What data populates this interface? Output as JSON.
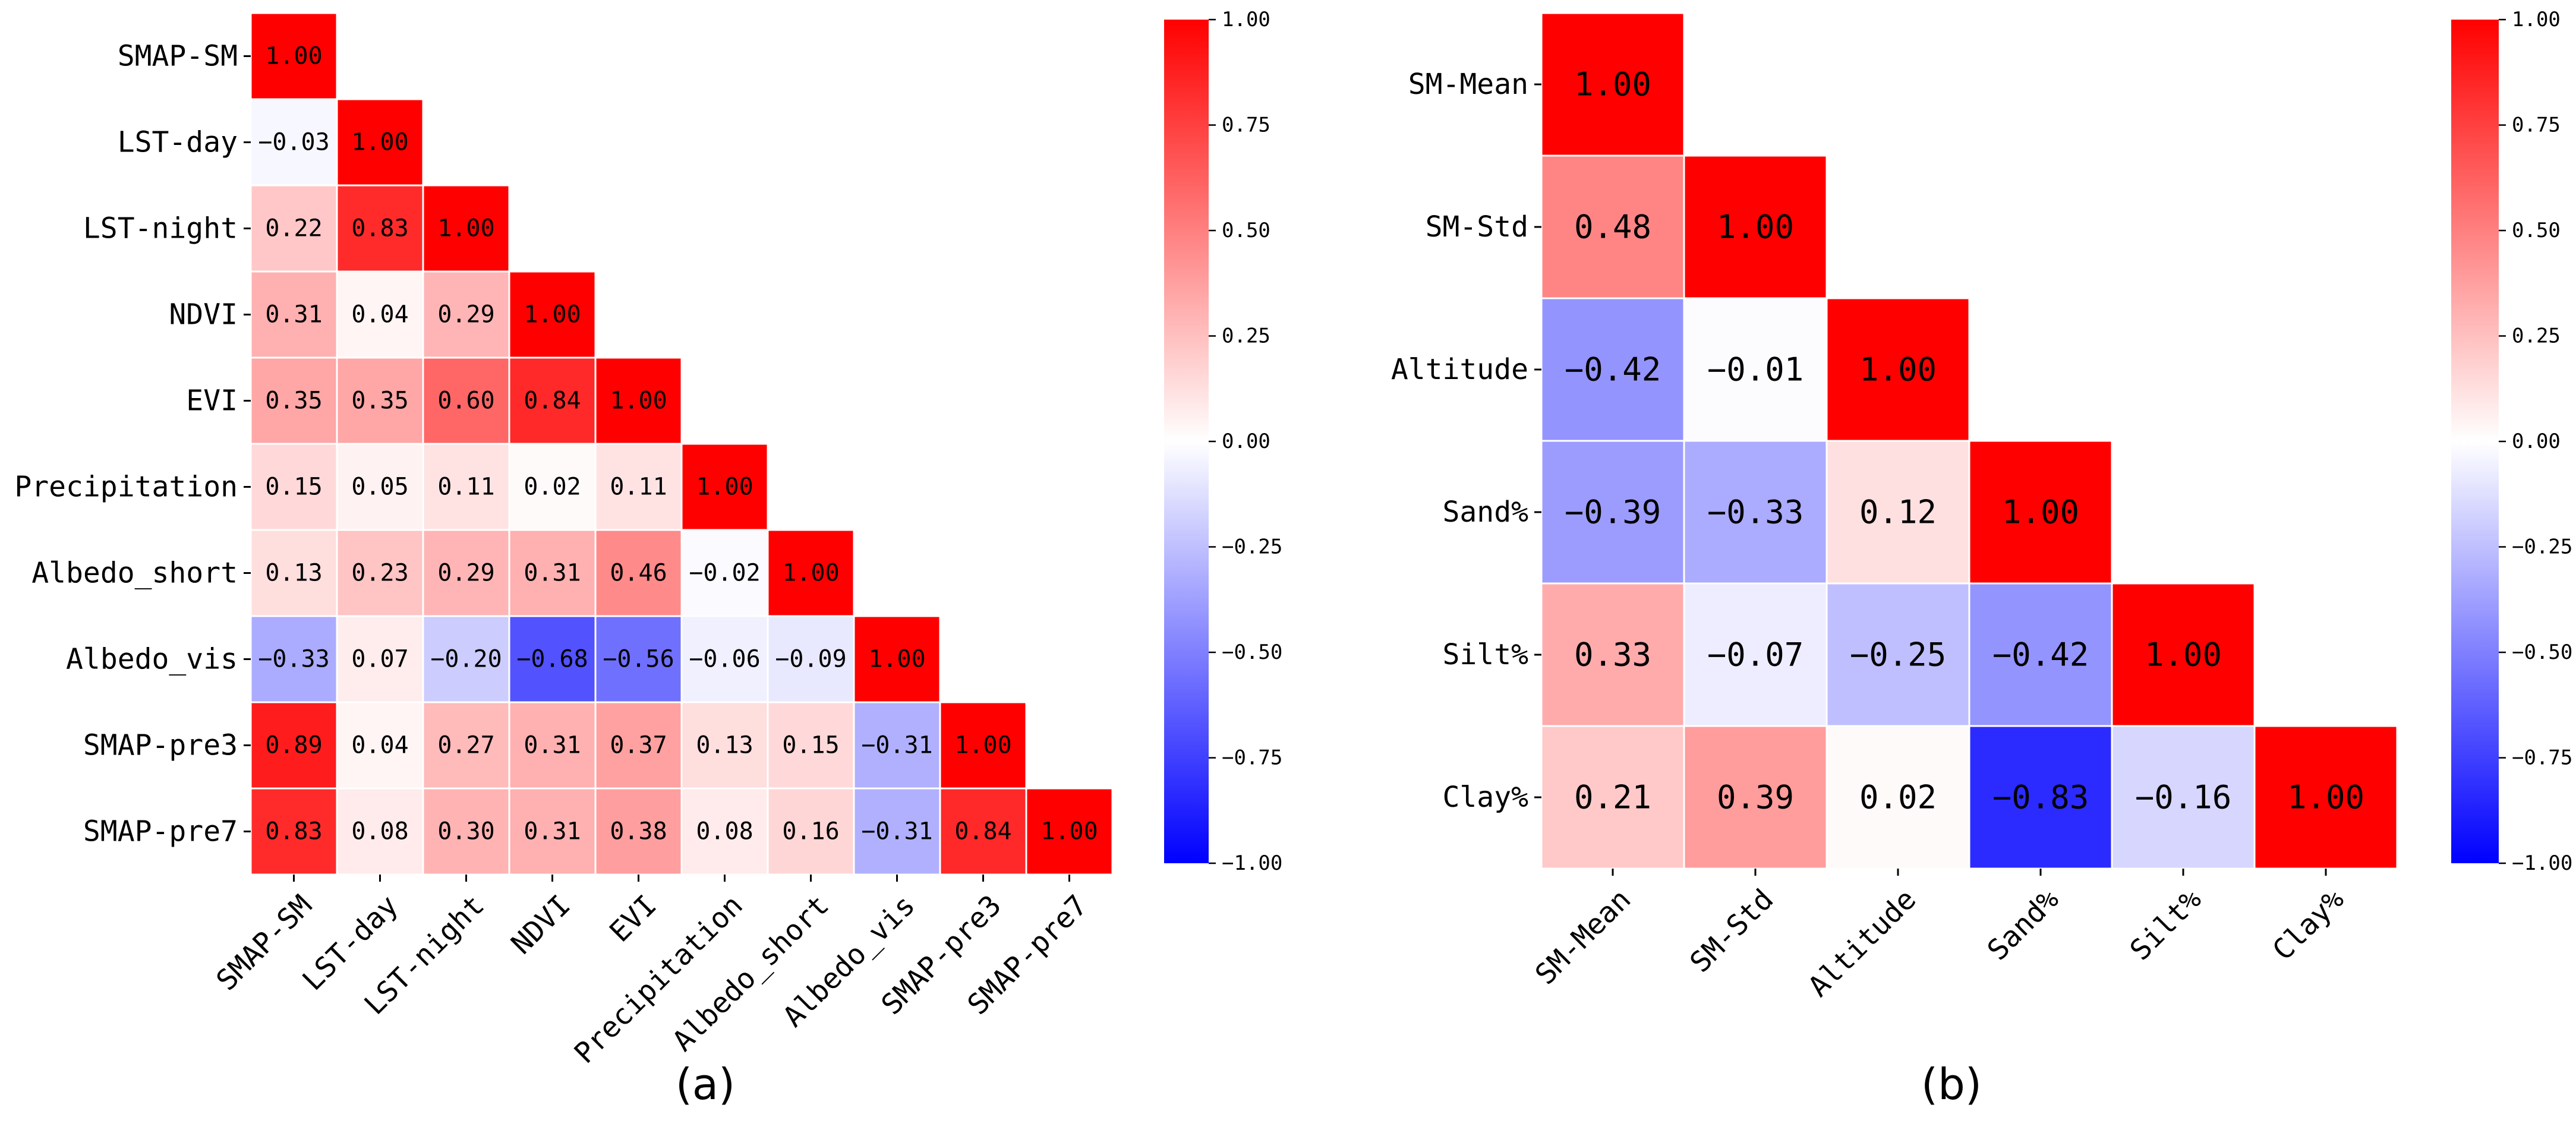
{
  "colors": {
    "positive": "#ff0000",
    "neutral": "#ffffff",
    "negative": "#0000ff",
    "cell_border": "#ffffff"
  },
  "chart_data": [
    {
      "type": "heatmap",
      "panel_label": "(a)",
      "variables": [
        "SMAP-SM",
        "LST-day",
        "LST-night",
        "NDVI",
        "EVI",
        "Precipitation",
        "Albedo_short",
        "Albedo_vis",
        "SMAP-pre3",
        "SMAP-pre7"
      ],
      "lower_triangle": [
        [
          1.0
        ],
        [
          -0.03,
          1.0
        ],
        [
          0.22,
          0.83,
          1.0
        ],
        [
          0.31,
          0.04,
          0.29,
          1.0
        ],
        [
          0.35,
          0.35,
          0.6,
          0.84,
          1.0
        ],
        [
          0.15,
          0.05,
          0.11,
          0.02,
          0.11,
          1.0
        ],
        [
          0.13,
          0.23,
          0.29,
          0.31,
          0.46,
          -0.02,
          1.0
        ],
        [
          -0.33,
          0.07,
          -0.2,
          -0.68,
          -0.56,
          -0.06,
          -0.09,
          1.0
        ],
        [
          0.89,
          0.04,
          0.27,
          0.31,
          0.37,
          0.13,
          0.15,
          -0.31,
          1.0
        ],
        [
          0.83,
          0.08,
          0.3,
          0.31,
          0.38,
          0.08,
          0.16,
          -0.31,
          0.84,
          1.0
        ]
      ],
      "colorbar": {
        "range": [
          -1,
          1
        ],
        "ticks": [
          "1.00",
          "0.75",
          "0.50",
          "0.25",
          "0.00",
          "−0.25",
          "−0.50",
          "−0.75",
          "−1.00"
        ]
      }
    },
    {
      "type": "heatmap",
      "panel_label": "(b)",
      "variables": [
        "SM-Mean",
        "SM-Std",
        "Altitude",
        "Sand%",
        "Silt%",
        "Clay%"
      ],
      "lower_triangle": [
        [
          1.0
        ],
        [
          0.48,
          1.0
        ],
        [
          -0.42,
          -0.01,
          1.0
        ],
        [
          -0.39,
          -0.33,
          0.12,
          1.0
        ],
        [
          0.33,
          -0.07,
          -0.25,
          -0.42,
          1.0
        ],
        [
          0.21,
          0.39,
          0.02,
          -0.83,
          -0.16,
          1.0
        ]
      ],
      "colorbar": {
        "range": [
          -1,
          1
        ],
        "ticks": [
          "1.00",
          "0.75",
          "0.50",
          "0.25",
          "0.00",
          "−0.25",
          "−0.50",
          "−0.75",
          "−1.00"
        ]
      }
    }
  ]
}
